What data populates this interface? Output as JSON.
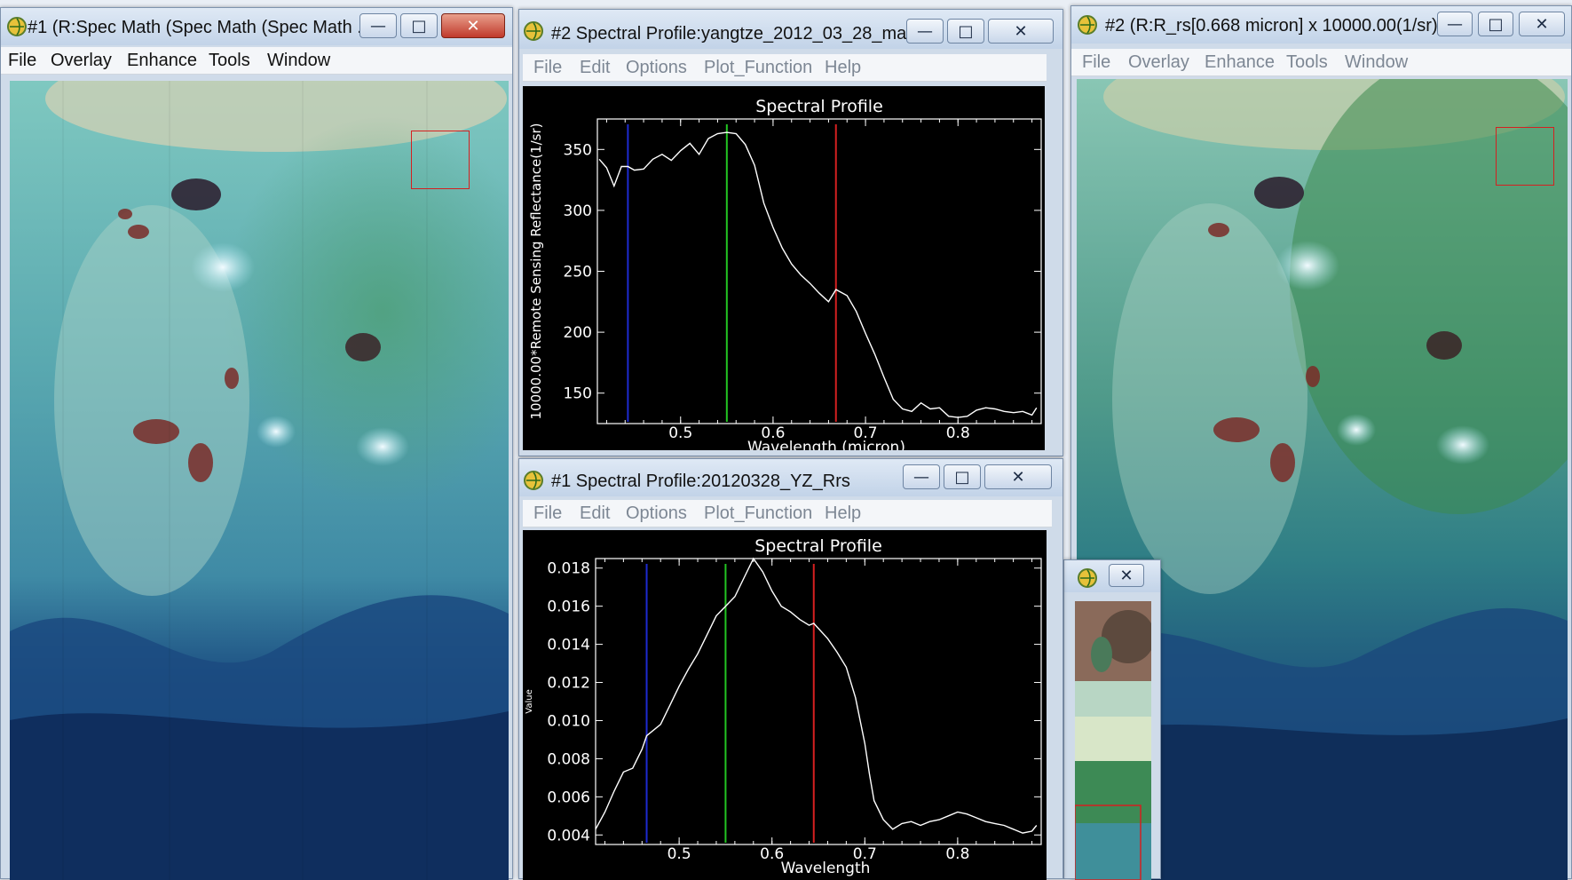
{
  "colors": {
    "titlebar": "#c9d8ea",
    "close_button": "#c0392b",
    "plot_background": "#000000",
    "plot_line": "#ffffff",
    "band_blue": "#1d2bd0",
    "band_green": "#22c422",
    "band_red": "#d42020",
    "roi_box": "#d42020"
  },
  "windows": {
    "display1": {
      "title": "#1 (R:Spec Math (Spec Math (Spec Math ...",
      "menu": [
        "File",
        "Overlay",
        "Enhance",
        "Tools",
        "Window"
      ],
      "icons": {
        "minimize": "minimize-icon",
        "maximize": "maximize-icon",
        "close": "close-icon"
      }
    },
    "profile2": {
      "title": "#2 Spectral Profile:yangtze_2012_03_28_ma...",
      "menu": [
        "File",
        "Edit",
        "Options",
        "Plot_Function",
        "Help"
      ]
    },
    "profile1": {
      "title": "#1 Spectral Profile:20120328_YZ_Rrs",
      "menu": [
        "File",
        "Edit",
        "Options",
        "Plot_Function",
        "Help"
      ]
    },
    "display2": {
      "title": "#2 (R:R_rs[0.668 micron] x 10000.00(1/sr)...",
      "menu": [
        "File",
        "Overlay",
        "Enhance",
        "Tools",
        "Window"
      ]
    },
    "scroll": {
      "title": ""
    }
  },
  "chart_data": [
    {
      "type": "line",
      "title": "Spectral Profile",
      "xlabel": "Wavelength (micron)",
      "ylabel": "10000.00*Remote Sensing Reflectance(1/sr)",
      "xlim": [
        0.41,
        0.89
      ],
      "ylim": [
        125,
        375
      ],
      "xticks": [
        "0.5",
        "0.6",
        "0.7",
        "0.8"
      ],
      "yticks": [
        "150",
        "200",
        "250",
        "300",
        "350"
      ],
      "band_markers": [
        {
          "color": "blue",
          "x": 0.443
        },
        {
          "color": "green",
          "x": 0.55
        },
        {
          "color": "red",
          "x": 0.668
        }
      ],
      "series": [
        {
          "x": [
            0.412,
            0.42,
            0.428,
            0.436,
            0.443,
            0.45,
            0.46,
            0.47,
            0.48,
            0.49,
            0.5,
            0.51,
            0.52,
            0.53,
            0.54,
            0.55,
            0.56,
            0.57,
            0.58,
            0.59,
            0.6,
            0.61,
            0.62,
            0.63,
            0.64,
            0.65,
            0.66,
            0.668,
            0.68,
            0.69,
            0.7,
            0.71,
            0.72,
            0.73,
            0.74,
            0.75,
            0.76,
            0.77,
            0.78,
            0.79,
            0.8,
            0.81,
            0.82,
            0.83,
            0.84,
            0.85,
            0.86,
            0.87,
            0.88,
            0.885
          ],
          "y": [
            342,
            335,
            320,
            336,
            336,
            333,
            334,
            342,
            346,
            341,
            349,
            355,
            346,
            359,
            363,
            364,
            363,
            354,
            337,
            306,
            286,
            269,
            256,
            247,
            240,
            232,
            225,
            235,
            230,
            217,
            199,
            182,
            163,
            145,
            137,
            135,
            142,
            137,
            138,
            131,
            130,
            131,
            136,
            138,
            137,
            135,
            134,
            135,
            132,
            138
          ]
        }
      ]
    },
    {
      "type": "line",
      "title": "Spectral Profile",
      "xlabel": "Wavelength",
      "ylabel": "Value",
      "xlim": [
        0.41,
        0.89
      ],
      "ylim": [
        0.0035,
        0.0185
      ],
      "xticks": [
        "0.5",
        "0.6",
        "0.7",
        "0.8"
      ],
      "yticks": [
        "0.004",
        "0.006",
        "0.008",
        "0.010",
        "0.012",
        "0.014",
        "0.016",
        "0.018"
      ],
      "band_markers": [
        {
          "color": "blue",
          "x": 0.465
        },
        {
          "color": "green",
          "x": 0.55
        },
        {
          "color": "red",
          "x": 0.645
        }
      ],
      "series": [
        {
          "x": [
            0.41,
            0.42,
            0.43,
            0.44,
            0.45,
            0.46,
            0.465,
            0.48,
            0.49,
            0.5,
            0.51,
            0.52,
            0.53,
            0.54,
            0.55,
            0.56,
            0.57,
            0.58,
            0.59,
            0.6,
            0.61,
            0.62,
            0.63,
            0.64,
            0.645,
            0.66,
            0.67,
            0.68,
            0.69,
            0.7,
            0.705,
            0.71,
            0.72,
            0.73,
            0.74,
            0.75,
            0.76,
            0.77,
            0.78,
            0.79,
            0.8,
            0.81,
            0.82,
            0.83,
            0.84,
            0.85,
            0.86,
            0.87,
            0.88,
            0.885
          ],
          "y": [
            0.0043,
            0.0052,
            0.0063,
            0.0073,
            0.0075,
            0.0085,
            0.0092,
            0.0098,
            0.0108,
            0.0118,
            0.0127,
            0.0135,
            0.0145,
            0.0155,
            0.016,
            0.0165,
            0.0175,
            0.0185,
            0.0178,
            0.0168,
            0.016,
            0.0157,
            0.0153,
            0.015,
            0.0151,
            0.0143,
            0.0136,
            0.0128,
            0.0112,
            0.0088,
            0.0072,
            0.0058,
            0.0048,
            0.0043,
            0.0046,
            0.0047,
            0.0045,
            0.0047,
            0.0048,
            0.005,
            0.0052,
            0.0051,
            0.0049,
            0.0047,
            0.0046,
            0.0045,
            0.0043,
            0.0041,
            0.0042,
            0.0045
          ]
        }
      ]
    }
  ]
}
